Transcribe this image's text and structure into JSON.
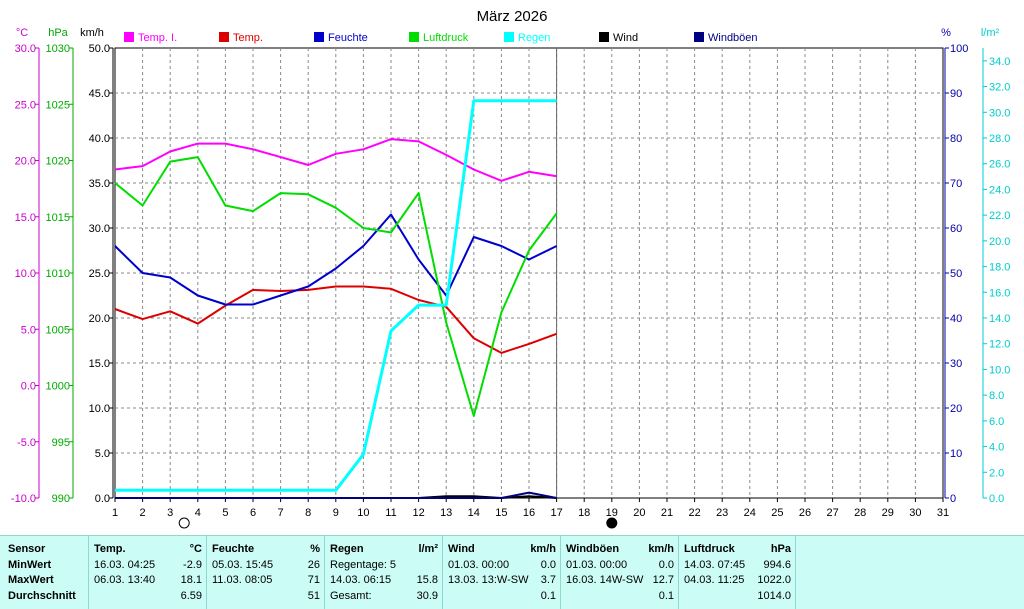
{
  "chart_data": {
    "type": "line",
    "title": "März 2026",
    "x": [
      1,
      2,
      3,
      4,
      5,
      6,
      7,
      8,
      9,
      10,
      11,
      12,
      13,
      14,
      15,
      16,
      17
    ],
    "x_ticks": [
      "1",
      "2",
      "3",
      "4",
      "5",
      "6",
      "7",
      "8",
      "9",
      "10",
      "11",
      "12",
      "13",
      "14",
      "15",
      "16",
      "17",
      "18",
      "19",
      "20",
      "21",
      "22",
      "23",
      "24",
      "25",
      "26",
      "27",
      "28",
      "29",
      "30",
      "31"
    ],
    "axes": {
      "temp": {
        "unit": "°C",
        "ticks": [
          "30.0",
          "25.0",
          "20.0",
          "15.0",
          "10.0",
          "5.0",
          "0.0",
          "-5.0",
          "-10.0"
        ],
        "range": [
          -10,
          30
        ],
        "color": "#cc00cc"
      },
      "pressure": {
        "unit": "hPa",
        "ticks": [
          "1030",
          "1025",
          "1020",
          "1015",
          "1010",
          "1005",
          "1000",
          "995",
          "990"
        ],
        "range": [
          990,
          1030
        ],
        "color": "#00aa00"
      },
      "wind": {
        "unit": "km/h",
        "ticks": [
          "50.0",
          "45.0",
          "40.0",
          "35.0",
          "30.0",
          "25.0",
          "20.0",
          "15.0",
          "10.0",
          "5.0",
          "0.0"
        ],
        "range": [
          0,
          50
        ],
        "color": "#000000"
      },
      "humidity": {
        "unit": "%",
        "ticks": [
          "100",
          "90",
          "80",
          "70",
          "60",
          "50",
          "40",
          "30",
          "20",
          "10",
          "0"
        ],
        "range": [
          0,
          100
        ],
        "color": "#0000aa"
      },
      "rain": {
        "unit": "l/m²",
        "ticks": [
          "34.0",
          "32.0",
          "30.0",
          "28.0",
          "26.0",
          "24.0",
          "22.0",
          "20.0",
          "18.0",
          "16.0",
          "14.0",
          "12.0",
          "10.0",
          "8.0",
          "6.0",
          "4.0",
          "2.0",
          "0.0"
        ],
        "range": [
          0,
          35
        ],
        "color": "#00cccc"
      }
    },
    "series": [
      {
        "name": "Temp. I.",
        "color": "#ff00ff",
        "axis": "temp",
        "values": [
          19.2,
          19.5,
          20.8,
          21.5,
          21.5,
          21.0,
          20.3,
          19.6,
          20.6,
          21.0,
          21.9,
          21.7,
          20.5,
          19.2,
          18.2,
          19.0,
          18.6
        ]
      },
      {
        "name": "Temp.",
        "color": "#dd0000",
        "axis": "temp",
        "values": [
          6.8,
          5.9,
          6.6,
          5.5,
          7.1,
          8.5,
          8.4,
          8.5,
          8.8,
          8.8,
          8.6,
          7.6,
          7.0,
          4.2,
          2.9,
          3.7,
          4.6
        ]
      },
      {
        "name": "Feuchte",
        "color": "#0000cc",
        "axis": "humidity",
        "values": [
          56,
          50,
          49,
          45,
          43,
          43,
          45,
          47,
          51,
          56,
          63,
          53,
          45,
          58,
          56,
          53,
          56
        ]
      },
      {
        "name": "Luftdruck",
        "color": "#00dd00",
        "axis": "pressure",
        "values": [
          1018.0,
          1016.0,
          1019.9,
          1020.3,
          1016.0,
          1015.5,
          1017.1,
          1017.0,
          1015.8,
          1014.0,
          1013.6,
          1017.1,
          1005.6,
          997.3,
          1006.5,
          1012.0,
          1015.3
        ]
      },
      {
        "name": "Regen",
        "color": "#00ffff",
        "axis": "rain",
        "values": [
          0.6,
          0.6,
          0.6,
          0.6,
          0.6,
          0.6,
          0.6,
          0.6,
          0.6,
          3.4,
          13.0,
          15.0,
          15.0,
          30.9,
          30.9,
          30.9,
          30.9
        ]
      },
      {
        "name": "Wind",
        "color": "#000000",
        "axis": "wind",
        "values": [
          0,
          0,
          0,
          0,
          0,
          0,
          0,
          0,
          0,
          0,
          0,
          0,
          0.2,
          0.2,
          0,
          0.2,
          0
        ]
      },
      {
        "name": "Windböen",
        "color": "#000080",
        "axis": "wind",
        "values": [
          0,
          0,
          0,
          0,
          0,
          0,
          0,
          0,
          0,
          0,
          0,
          0,
          0,
          0,
          0,
          0.6,
          0
        ]
      }
    ],
    "moon": {
      "full_moon_day": 3,
      "new_moon_day": 19
    },
    "grid": true
  },
  "stats": {
    "label_col": {
      "header": "Sensor",
      "rows": [
        "MinWert",
        "MaxWert",
        "Durchschnitt"
      ]
    },
    "columns": [
      {
        "name": "Temp.",
        "unit": "°C",
        "rows": [
          {
            "label": "16.03.  04:25",
            "value": "-2.9"
          },
          {
            "label": "06.03.  13:40",
            "value": "18.1"
          },
          {
            "label": "",
            "value": "6.59"
          }
        ]
      },
      {
        "name": "Feuchte",
        "unit": "%",
        "rows": [
          {
            "label": "05.03.  15:45",
            "value": "26"
          },
          {
            "label": "11.03.  08:05",
            "value": "71"
          },
          {
            "label": "",
            "value": "51"
          }
        ]
      },
      {
        "name": "Regen",
        "unit": "l/m²",
        "rows": [
          {
            "label": "Regentage: 5",
            "value": ""
          },
          {
            "label": "14.03.  06:15",
            "value": "15.8"
          },
          {
            "label": "Gesamt:",
            "value": "30.9"
          }
        ]
      },
      {
        "name": "Wind",
        "unit": "km/h",
        "rows": [
          {
            "label": "01.03.  00:00",
            "value": "0.0"
          },
          {
            "label": "13.03.  13:W-SW",
            "value": "3.7"
          },
          {
            "label": "",
            "value": "0.1"
          }
        ]
      },
      {
        "name": "Windböen",
        "unit": "km/h",
        "rows": [
          {
            "label": "01.03.  00:00",
            "value": "0.0"
          },
          {
            "label": "16.03.  14W-SW",
            "value": "12.7"
          },
          {
            "label": "",
            "value": "0.1"
          }
        ]
      },
      {
        "name": "Luftdruck",
        "unit": "hPa",
        "rows": [
          {
            "label": "14.03.  07:45",
            "value": "994.6"
          },
          {
            "label": "04.03.  11:25",
            "value": "1022.0"
          },
          {
            "label": "",
            "value": "1014.0"
          }
        ]
      }
    ]
  }
}
